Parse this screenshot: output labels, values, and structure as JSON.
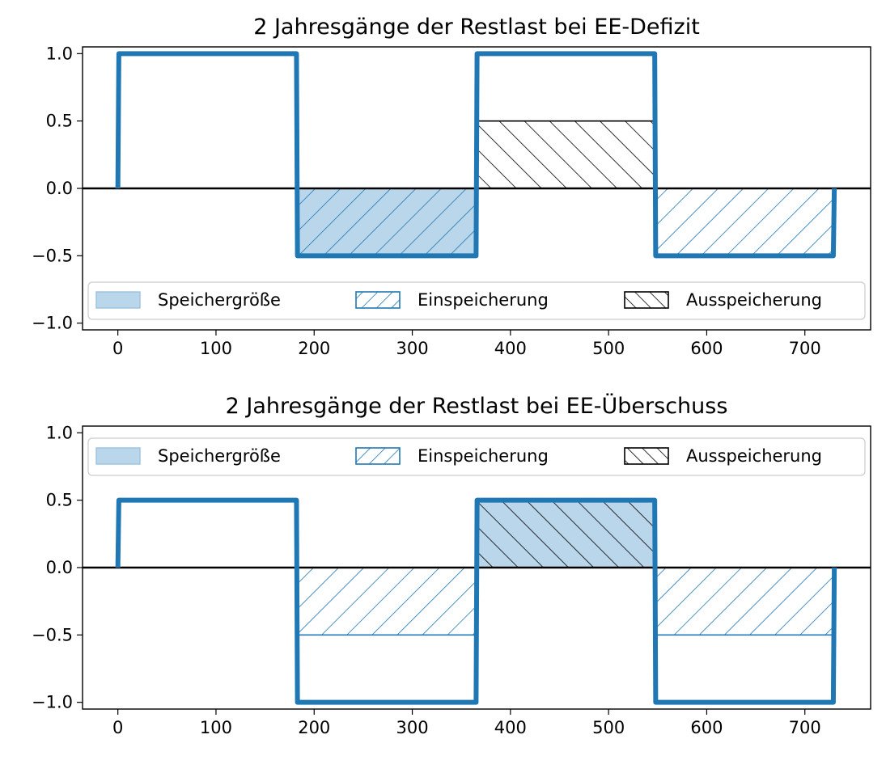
{
  "chart_data": [
    {
      "type": "line",
      "title": "2 Jahresgänge der Restlast bei EE-Defizit",
      "xlabel": "",
      "ylabel": "",
      "xlim": [
        -36,
        767
      ],
      "ylim": [
        -1.05,
        1.05
      ],
      "xticks": [
        0,
        100,
        200,
        300,
        400,
        500,
        600,
        700
      ],
      "yticks": [
        1.0,
        0.5,
        0.0,
        -0.5,
        -1.0
      ],
      "ytick_labels": [
        "1.0",
        "0.5",
        "0.0",
        "−0.5",
        "−1.0"
      ],
      "legend_position": "lower center",
      "series": [
        {
          "x": [
            0,
            1,
            182,
            183,
            365,
            366,
            547,
            548,
            729,
            730
          ],
          "values": [
            0,
            1,
            1,
            -0.5,
            -0.5,
            1,
            1,
            -0.5,
            -0.5,
            0
          ],
          "color": "#1f77b4"
        }
      ],
      "areas": [
        {
          "role": "speicher_einspeicherung",
          "x": [
            183,
            365
          ],
          "y0": 0,
          "y1": -0.5
        },
        {
          "role": "ausspeicherung",
          "x": [
            365,
            547
          ],
          "y0": 0,
          "y1": 0.5
        },
        {
          "role": "einspeicherung",
          "x": [
            547,
            730
          ],
          "y0": 0,
          "y1": -0.5
        }
      ],
      "legend": [
        {
          "label": "Speichergröße",
          "style": "fill"
        },
        {
          "label": "Einspeicherung",
          "style": "hatch_forward"
        },
        {
          "label": "Ausspeicherung",
          "style": "hatch_back"
        }
      ]
    },
    {
      "type": "line",
      "title": "2 Jahresgänge der Restlast bei EE-Überschuss",
      "xlabel": "",
      "ylabel": "",
      "xlim": [
        -36,
        767
      ],
      "ylim": [
        -1.05,
        1.05
      ],
      "xticks": [
        0,
        100,
        200,
        300,
        400,
        500,
        600,
        700
      ],
      "yticks": [
        1.0,
        0.5,
        0.0,
        -0.5,
        -1.0
      ],
      "ytick_labels": [
        "1.0",
        "0.5",
        "0.0",
        "−0.5",
        "−1.0"
      ],
      "legend_position": "upper center",
      "series": [
        {
          "x": [
            0,
            1,
            182,
            183,
            365,
            366,
            547,
            548,
            729,
            730
          ],
          "values": [
            0,
            0.5,
            0.5,
            -1,
            -1,
            0.5,
            0.5,
            -1,
            -1,
            0
          ],
          "color": "#1f77b4"
        }
      ],
      "areas": [
        {
          "role": "einspeicherung",
          "x": [
            183,
            365
          ],
          "y0": 0,
          "y1": -0.5
        },
        {
          "role": "speicher_ausspeicherung",
          "x": [
            365,
            547
          ],
          "y0": 0,
          "y1": 0.5
        },
        {
          "role": "einspeicherung",
          "x": [
            547,
            730
          ],
          "y0": 0,
          "y1": -0.5
        }
      ],
      "legend": [
        {
          "label": "Speichergröße",
          "style": "fill"
        },
        {
          "label": "Einspeicherung",
          "style": "hatch_forward"
        },
        {
          "label": "Ausspeicherung",
          "style": "hatch_back"
        }
      ]
    }
  ],
  "colors": {
    "line": "#1f77b4",
    "fill": "#bad6ea",
    "fill_edge": "#9bc2de",
    "hatch_blue": "#1f77b4",
    "hatch_black": "#000000",
    "zero_line": "#000000"
  }
}
